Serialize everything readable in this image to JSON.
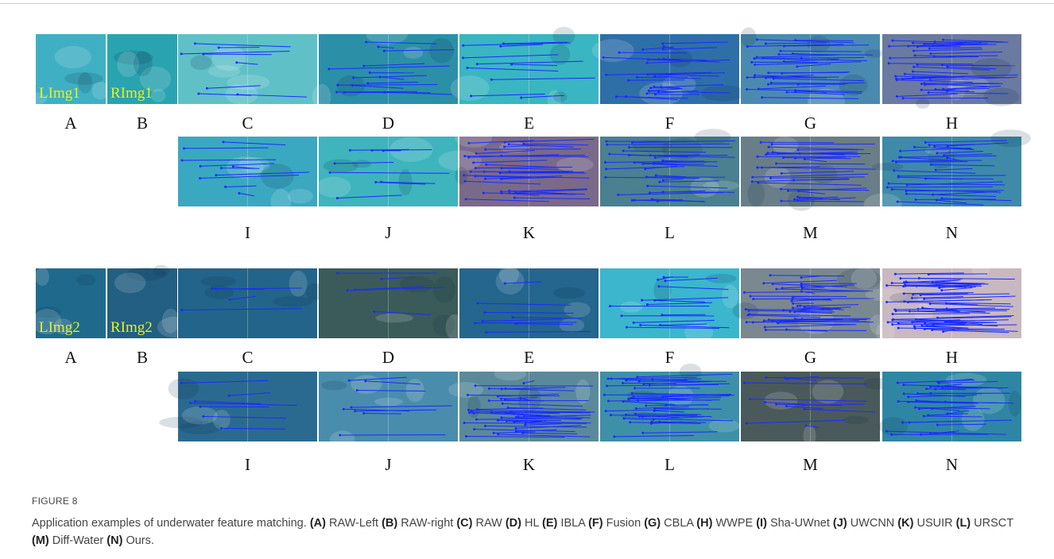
{
  "figure": {
    "sets": [
      {
        "top_labels": [
          "A",
          "B",
          "C",
          "D",
          "E",
          "F",
          "G",
          "H"
        ],
        "bottom_labels": [
          "I",
          "J",
          "K",
          "L",
          "M",
          "N"
        ],
        "overlays": [
          "LImg1",
          "RImg1"
        ]
      },
      {
        "top_labels": [
          "A",
          "B",
          "C",
          "D",
          "E",
          "F",
          "G",
          "H"
        ],
        "bottom_labels": [
          "I",
          "J",
          "K",
          "L",
          "M",
          "N"
        ],
        "overlays": [
          "LImg2",
          "RImg2"
        ]
      }
    ],
    "caption": {
      "label": "FIGURE 8",
      "intro": "Application examples of underwater feature matching.",
      "items": [
        {
          "key": "(A)",
          "text": "RAW-Left"
        },
        {
          "key": "(B)",
          "text": "RAW-right"
        },
        {
          "key": "(C)",
          "text": "RAW"
        },
        {
          "key": "(D)",
          "text": "HL"
        },
        {
          "key": "(E)",
          "text": "IBLA"
        },
        {
          "key": "(F)",
          "text": "Fusion"
        },
        {
          "key": "(G)",
          "text": "CBLA"
        },
        {
          "key": "(H)",
          "text": "WWPE"
        },
        {
          "key": "(I)",
          "text": "Sha-UWnet"
        },
        {
          "key": "(J)",
          "text": "UWCNN"
        },
        {
          "key": "(K)",
          "text": "USUIR"
        },
        {
          "key": "(L)",
          "text": "URSCT"
        },
        {
          "key": "(M)",
          "text": "Diff-Water"
        },
        {
          "key": "(N)",
          "text": "Ours."
        }
      ]
    }
  }
}
